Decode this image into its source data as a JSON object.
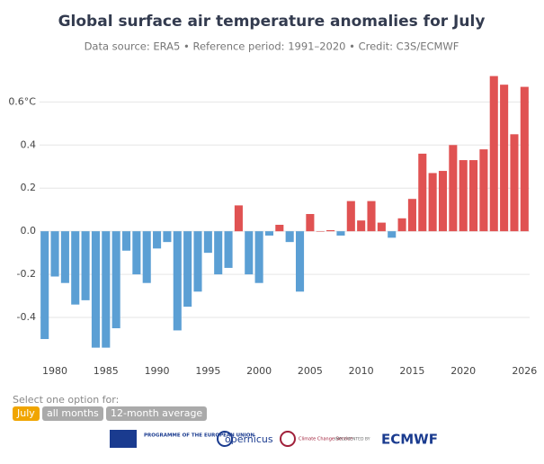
{
  "chart_data": {
    "type": "bar",
    "title": "Global surface air temperature anomalies for July",
    "subtitle": "Data source: ERA5 • Reference period: 1991–2020 • Credit: C3S/ECMWF",
    "x": [
      1979,
      1980,
      1981,
      1982,
      1983,
      1984,
      1985,
      1986,
      1987,
      1988,
      1989,
      1990,
      1991,
      1992,
      1993,
      1994,
      1995,
      1996,
      1997,
      1998,
      1999,
      2000,
      2001,
      2002,
      2003,
      2004,
      2005,
      2006,
      2007,
      2008,
      2009,
      2010,
      2011,
      2012,
      2013,
      2014,
      2015,
      2016,
      2017,
      2018,
      2019,
      2020,
      2021,
      2022,
      2023,
      2024,
      2025,
      2026
    ],
    "values": [
      -0.5,
      -0.21,
      -0.24,
      -0.34,
      -0.32,
      -0.54,
      -0.54,
      -0.45,
      -0.09,
      -0.2,
      -0.24,
      -0.08,
      -0.05,
      -0.46,
      -0.35,
      -0.28,
      -0.1,
      -0.2,
      -0.17,
      0.12,
      -0.2,
      -0.24,
      -0.02,
      0.03,
      -0.05,
      -0.28,
      0.08,
      0.0,
      0.005,
      -0.02,
      0.14,
      0.05,
      0.14,
      0.04,
      -0.03,
      0.06,
      0.15,
      0.36,
      0.27,
      0.28,
      0.4,
      0.33,
      0.33,
      0.38,
      0.72,
      0.68,
      0.45,
      0.67
    ],
    "positive_color": "#e05252",
    "negative_color": "#5b9fd4",
    "xlim": [
      1978.5,
      2026.5
    ],
    "xticks": [
      1980,
      1985,
      1990,
      1995,
      2000,
      2005,
      2010,
      2015,
      2020,
      2026
    ],
    "ylim": [
      -0.575,
      0.76
    ],
    "yticks": [
      {
        "value": 0.6,
        "label": "0.6°C"
      },
      0.4,
      0.2,
      {
        "value": 0,
        "label": "0.0"
      },
      -0.2,
      -0.4
    ],
    "grid": true
  },
  "controls": {
    "prompt": "Select one option for:",
    "options": [
      "July",
      "all months",
      "12-month average"
    ],
    "selected": 0
  },
  "logos": [
    "PROGRAMME OF THE EUROPEAN UNION",
    "opernicus",
    "Climate Change Service",
    "IMPLEMENTED BY",
    "ECMWF"
  ]
}
